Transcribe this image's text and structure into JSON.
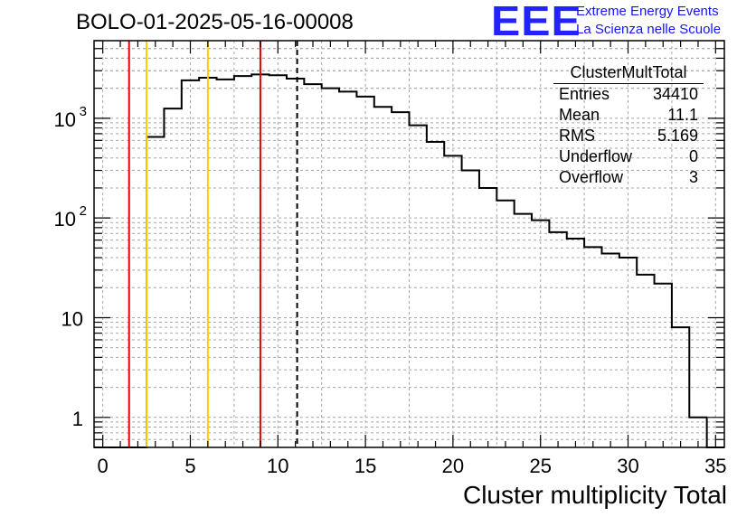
{
  "header": {
    "title": "BOLO-01-2025-05-16-00008"
  },
  "logo": {
    "mark": "EEE",
    "line1": "Extreme Energy Events",
    "line2": "La Scienza nelle Scuole",
    "color": "#2323ff"
  },
  "stats_box": {
    "title": "ClusterMultTotal",
    "rows": [
      {
        "label": "Entries",
        "value": "34410"
      },
      {
        "label": "Mean",
        "value": "11.1"
      },
      {
        "label": "RMS",
        "value": "5.169"
      },
      {
        "label": "Underflow",
        "value": "0"
      },
      {
        "label": "Overflow",
        "value": "3"
      }
    ]
  },
  "chart_data": {
    "type": "histogram",
    "xlabel": "Cluster multiplicity Total",
    "ylabel": "",
    "xlim": [
      -0.5,
      35.5
    ],
    "ylim": [
      0.5,
      6000
    ],
    "log_y": true,
    "grid": true,
    "x_ticks": [
      "0",
      "5",
      "10",
      "15",
      "20",
      "25",
      "30",
      "35"
    ],
    "y_ticks": [
      "1",
      "10",
      "10^2",
      "10^3"
    ],
    "bin_width": 1,
    "bins_start": -0.5,
    "values": [
      0,
      0,
      0,
      650,
      1250,
      2400,
      2550,
      2450,
      2650,
      2750,
      2700,
      2500,
      2200,
      2000,
      1850,
      1650,
      1300,
      1150,
      850,
      580,
      420,
      300,
      200,
      150,
      110,
      95,
      72,
      62,
      51,
      44,
      40,
      27,
      22,
      8,
      1,
      0
    ],
    "line_color": "#000000",
    "vertical_lines": [
      {
        "x": 1.5,
        "color": "#e60000",
        "style": "solid"
      },
      {
        "x": 2.5,
        "color": "#ffcc00",
        "style": "solid"
      },
      {
        "x": 6.0,
        "color": "#ffcc00",
        "style": "solid"
      },
      {
        "x": 9.0,
        "color": "#e60000",
        "style": "solid"
      },
      {
        "x": 11.1,
        "color": "#000000",
        "style": "dashed"
      }
    ]
  }
}
